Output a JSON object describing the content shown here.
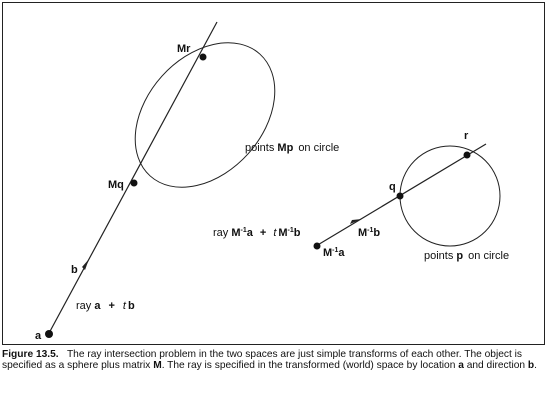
{
  "diagram": {
    "left_panel": {
      "point_a": "a",
      "direction_b": "b",
      "ray_label": {
        "prefix": "ray ",
        "origin": "a",
        "plus": "+",
        "param": "t",
        "dir": "b"
      },
      "point_Mq": "Mq",
      "point_Mr": "Mr",
      "ellipse_label": {
        "prefix": "points ",
        "bold": "Mp",
        "suffix": "on circle"
      }
    },
    "right_panel": {
      "origin_label": {
        "m": "M",
        "sup": "-1",
        "v": "a"
      },
      "dir_label": {
        "m": "M",
        "sup": "-1",
        "v": "b"
      },
      "point_q": "q",
      "point_r": "r",
      "ray_label": {
        "prefix": "ray ",
        "m1": "M",
        "sup1": "-1",
        "v1": "a",
        "plus": "+",
        "param": "t",
        "m2": "M",
        "sup2": "-1",
        "v2": "b"
      },
      "circle_label": {
        "prefix": "points ",
        "bold": "p",
        "suffix": "on circle"
      }
    }
  },
  "caption": {
    "fig": "Figure 13.5.",
    "t1": "The ray intersection problem in the two spaces are just simple transforms of each other.  The object is specified as a sphere plus matrix ",
    "m": "M",
    "t2": ". The ray is specified in the transformed (world) space by location ",
    "a": "a",
    "t3": " and direction ",
    "b": "b",
    "t4": "."
  }
}
